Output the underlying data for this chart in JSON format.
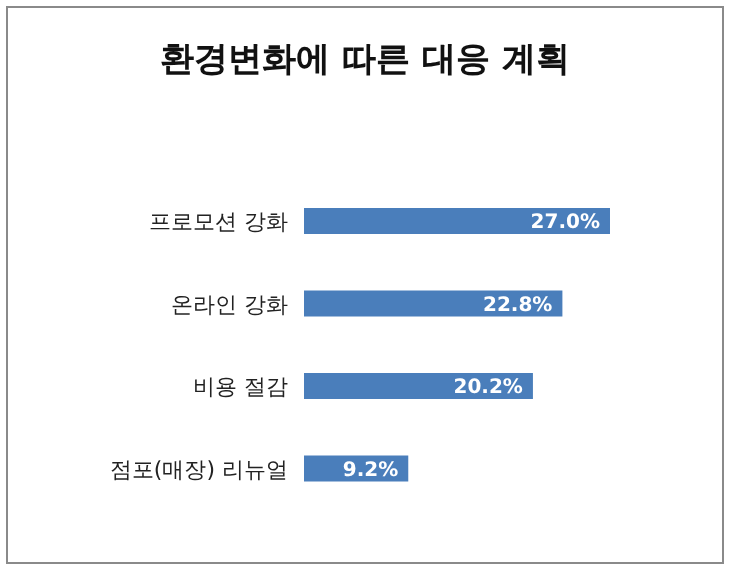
{
  "chart_data": {
    "type": "bar",
    "orientation": "horizontal",
    "title": "환경변화에 따른 대응 계획",
    "categories": [
      "프로모션 강화",
      "온라인 강화",
      "비용 절감",
      "점포(매장) 리뉴얼"
    ],
    "values": [
      27.0,
      22.8,
      20.2,
      9.2
    ],
    "value_labels": [
      "27.0%",
      "22.8%",
      "20.2%",
      "9.2%"
    ],
    "color": "#4a7ebb",
    "grid": false,
    "legend": false
  }
}
